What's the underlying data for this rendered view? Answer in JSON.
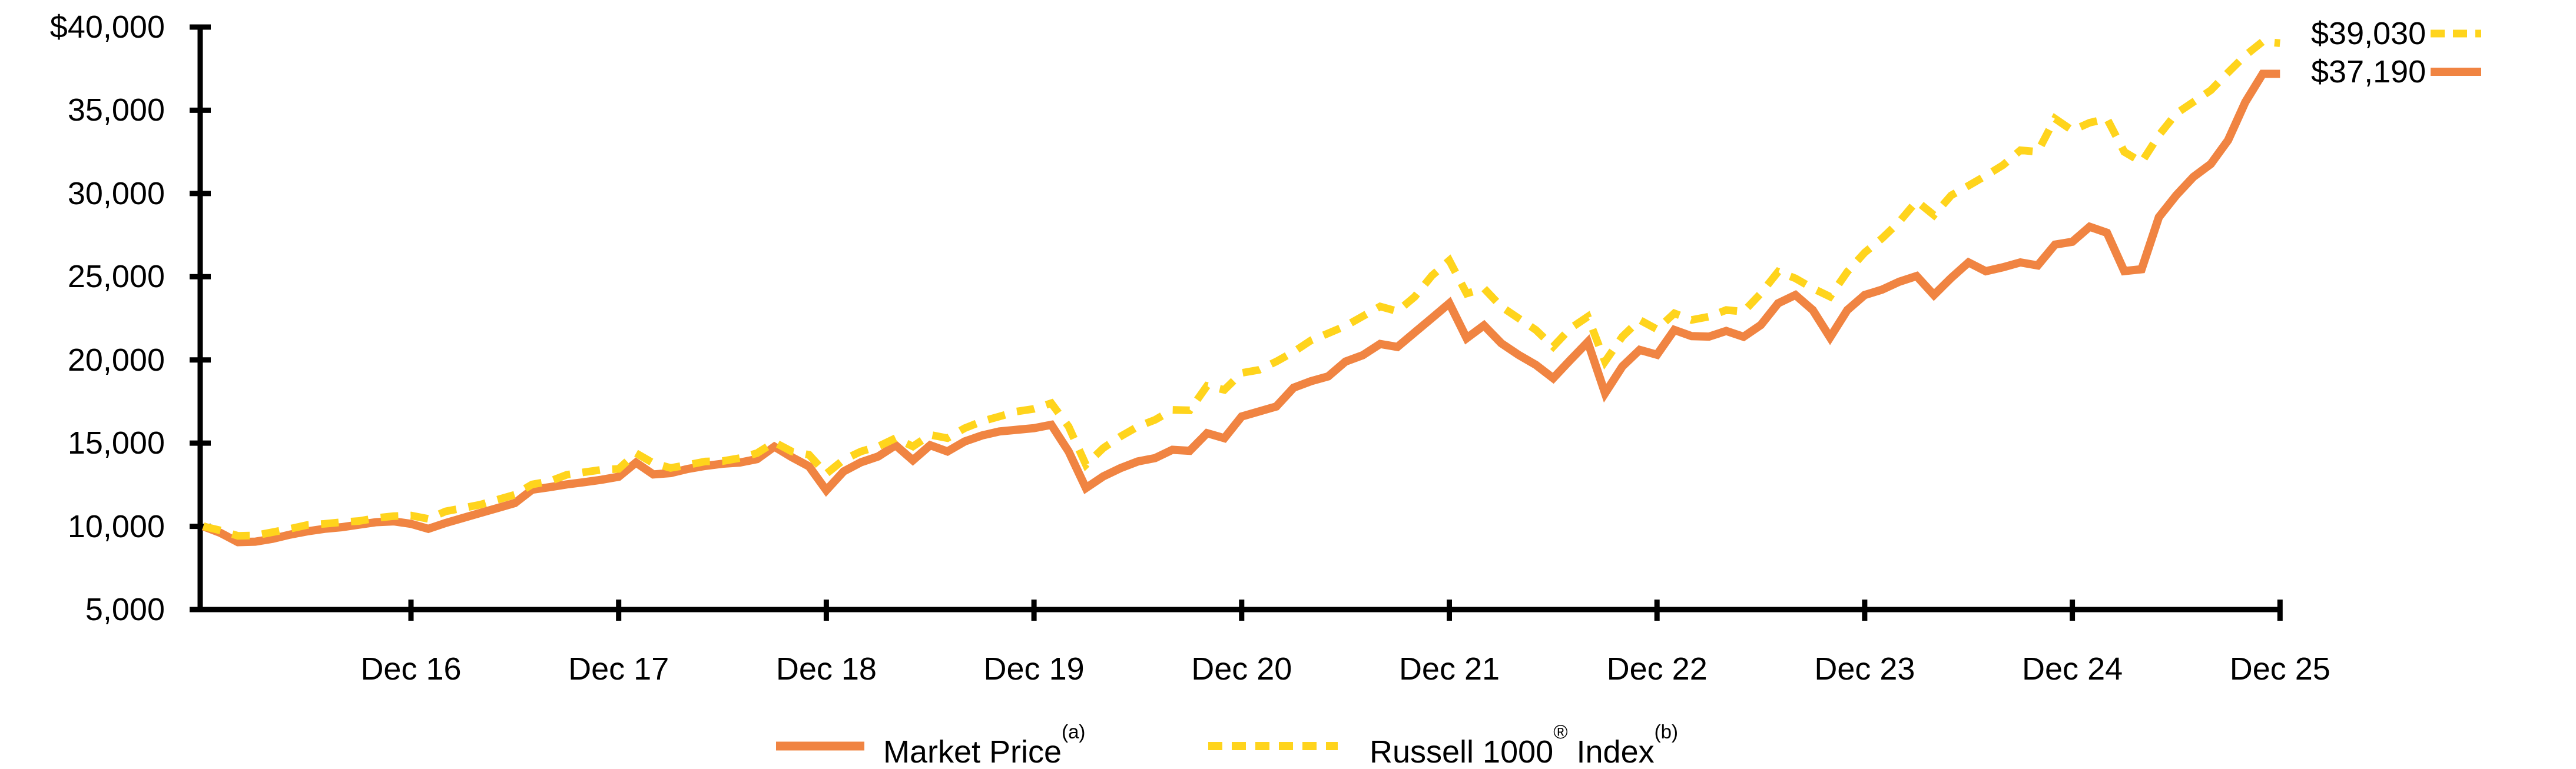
{
  "chart_data": {
    "type": "line",
    "title": "",
    "xlabel": "",
    "ylabel": "",
    "grid": false,
    "background": "#FFFFFF",
    "axis_color": "#000000",
    "y_axis": {
      "min": 5000,
      "max": 40000,
      "tick_interval": 5000
    },
    "y_tick_labels": [
      "$40,000",
      "35,000",
      "30,000",
      "25,000",
      "20,000",
      "15,000",
      "10,000",
      "5,000"
    ],
    "x_tick_labels": [
      "Dec 16",
      "Dec 17",
      "Dec 18",
      "Dec 19",
      "Dec 20",
      "Dec 21",
      "Dec 22",
      "Dec 23",
      "Dec 24",
      "Dec 25"
    ],
    "x_unit": "months, one point per month over ten years ending Dec 25",
    "legend_position": "bottom",
    "series": [
      {
        "name": "Market Price",
        "superscript": "(a)",
        "style": "solid",
        "color": "#F08442",
        "end_value_label": "$37,190",
        "values": [
          10000,
          9600,
          9050,
          9080,
          9250,
          9500,
          9700,
          9850,
          9950,
          10100,
          10250,
          10300,
          10150,
          9850,
          10200,
          10500,
          10800,
          11100,
          11400,
          12200,
          12350,
          12520,
          12650,
          12800,
          12980,
          13830,
          13120,
          13200,
          13450,
          13630,
          13760,
          13830,
          14040,
          14790,
          14160,
          13600,
          12165,
          13300,
          13850,
          14200,
          14875,
          13970,
          14875,
          14500,
          15100,
          15460,
          15700,
          15800,
          15900,
          16100,
          14500,
          12300,
          13000,
          13500,
          13900,
          14100,
          14600,
          14540,
          15600,
          15300,
          16600,
          16900,
          17200,
          18330,
          18720,
          19010,
          19900,
          20285,
          20960,
          20780,
          21650,
          22520,
          23400,
          21300,
          22075,
          21000,
          20300,
          19700,
          18900,
          20000,
          21075,
          18000,
          19610,
          20600,
          20310,
          21800,
          21430,
          21400,
          21740,
          21390,
          22100,
          23400,
          23900,
          23000,
          21350,
          23000,
          23900,
          24220,
          24700,
          25040,
          23900,
          24930,
          25860,
          25330,
          25570,
          25860,
          25680,
          26930,
          27100,
          28000,
          27640,
          25340,
          25450,
          28580,
          29890,
          31000,
          31770,
          33200,
          35500,
          37190,
          37190
        ]
      },
      {
        "name": "Russell 1000 Index",
        "superscript": "(b)",
        "registered_mark": "®",
        "style": "dashed",
        "color": "#FFD41C",
        "end_value_label": "$39,030",
        "values": [
          10000,
          9750,
          9430,
          9450,
          9650,
          9850,
          10080,
          10150,
          10250,
          10320,
          10500,
          10615,
          10650,
          10450,
          10900,
          11100,
          11300,
          11600,
          11900,
          12520,
          12700,
          13100,
          13250,
          13400,
          13450,
          14400,
          13800,
          13510,
          13690,
          13900,
          13920,
          14100,
          14400,
          15050,
          14500,
          14300,
          13160,
          14000,
          14500,
          14800,
          15300,
          14800,
          15500,
          15300,
          15900,
          16310,
          16600,
          16900,
          17060,
          17400,
          16000,
          13700,
          14700,
          15400,
          16000,
          16400,
          17000,
          16970,
          18440,
          18200,
          19220,
          19400,
          19900,
          20480,
          21170,
          21600,
          22040,
          22625,
          23210,
          22920,
          23795,
          25070,
          25975,
          23990,
          24300,
          23200,
          22500,
          21800,
          20800,
          21900,
          22600,
          19900,
          21400,
          22400,
          21840,
          22800,
          22400,
          22600,
          23000,
          22900,
          24000,
          25300,
          24900,
          24300,
          23800,
          25300,
          26450,
          27300,
          28300,
          29540,
          28700,
          29890,
          30470,
          31070,
          31710,
          32600,
          32500,
          34500,
          33790,
          34250,
          34500,
          32500,
          31880,
          33500,
          34800,
          35500,
          36200,
          37270,
          38300,
          39130,
          39030
        ]
      }
    ],
    "end_labels": [
      "$39,030",
      "$37,190"
    ]
  },
  "end_labels": {
    "russell": "$39,030",
    "market": "$37,190"
  },
  "legend": {
    "market_price": {
      "text": "Market Price",
      "sup": "(a)"
    },
    "russell": {
      "text1": "Russell 1000",
      "sup1": "®",
      "text2": " Index",
      "sup2": "(b)"
    }
  }
}
